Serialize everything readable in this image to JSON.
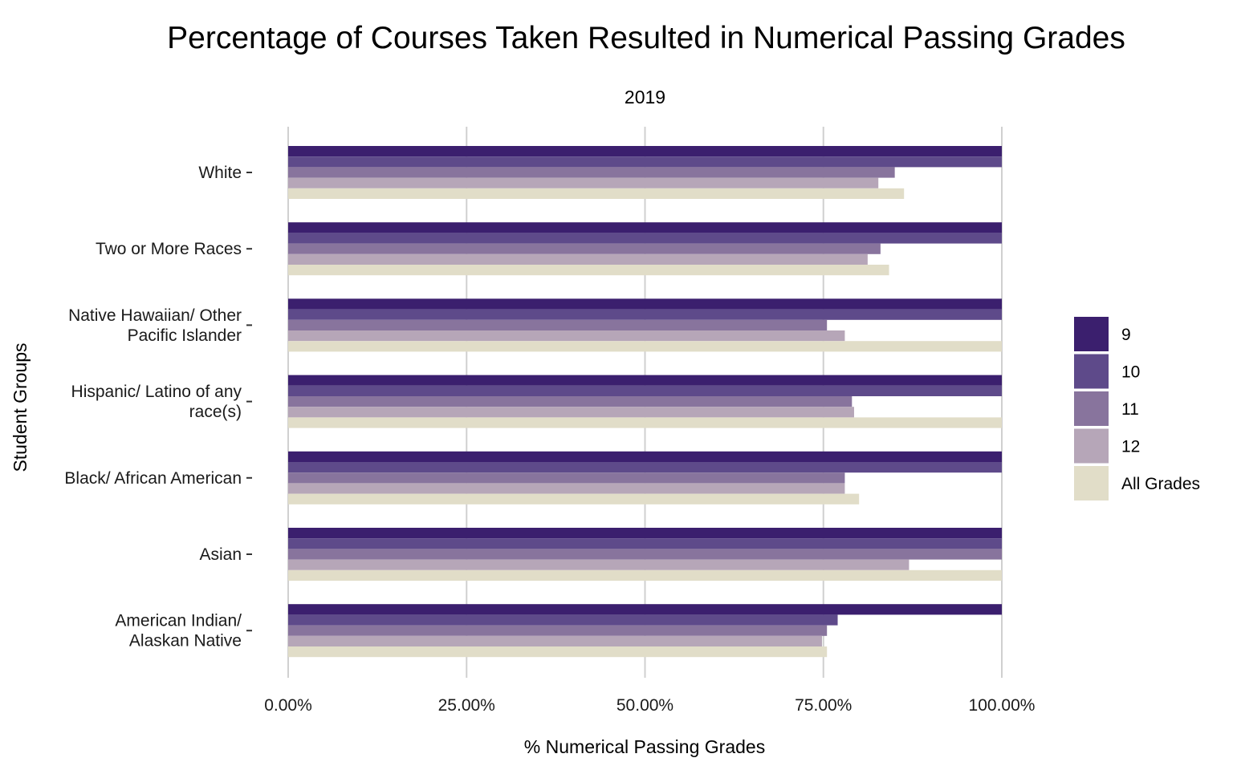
{
  "chart_data": {
    "type": "bar",
    "orientation": "horizontal",
    "title": "Percentage of Courses Taken Resulted in Numerical Passing Grades",
    "subtitle": "2019",
    "xlabel": "% Numerical Passing Grades",
    "ylabel": "Student Groups",
    "xlim": [
      0,
      100
    ],
    "x_ticks": [
      "0.00%",
      "25.00%",
      "50.00%",
      "75.00%",
      "100.00%"
    ],
    "x_tick_values": [
      0,
      25,
      50,
      75,
      100
    ],
    "grid": "vertical major gridlines",
    "legend_position": "right",
    "categories": [
      [
        "White"
      ],
      [
        "Two or More Races"
      ],
      [
        "Native Hawaiian/ Other",
        "Pacific Islander"
      ],
      [
        "Hispanic/ Latino of any",
        "race(s)"
      ],
      [
        "Black/ African American"
      ],
      [
        "Asian"
      ],
      [
        "American Indian/",
        "Alaskan Native"
      ]
    ],
    "series": [
      {
        "name": "9",
        "color": "#3b1f6e",
        "values": [
          100,
          100,
          100,
          100,
          100,
          100,
          100
        ]
      },
      {
        "name": "10",
        "color": "#5e4a8a",
        "values": [
          100,
          100,
          100,
          100,
          100,
          100,
          77
        ]
      },
      {
        "name": "11",
        "color": "#88749d",
        "values": [
          85,
          83,
          75.5,
          79,
          78,
          100,
          75.5
        ]
      },
      {
        "name": "12",
        "color": "#b6a6b8",
        "values": [
          82.7,
          81.2,
          78,
          79.3,
          78,
          87,
          74.8
        ]
      },
      {
        "name": "All Grades",
        "color": "#e1ddc8",
        "values": [
          86.3,
          84.2,
          100,
          100,
          80,
          100,
          75.5
        ]
      }
    ]
  }
}
